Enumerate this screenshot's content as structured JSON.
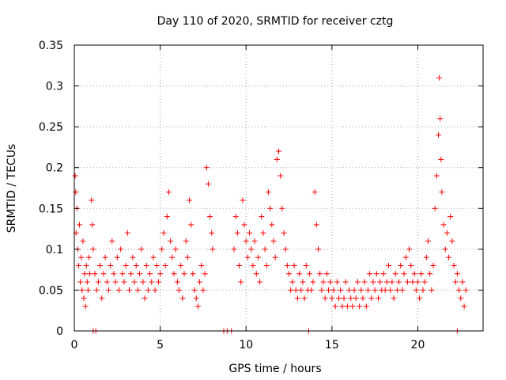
{
  "chart_data": {
    "type": "scatter",
    "title": "Day 110 of 2020, SRMTID for receiver cztg",
    "xlabel": "GPS time / hours",
    "ylabel": "SRMTID / TECUs",
    "xlim": [
      0,
      23.8
    ],
    "ylim": [
      0,
      0.35
    ],
    "xticks": [
      0,
      5,
      10,
      15,
      20
    ],
    "yticks": [
      0,
      0.05,
      0.1,
      0.15,
      0.2,
      0.25,
      0.3,
      0.35
    ],
    "ytick_labels": [
      "0",
      "0.05",
      "0.1",
      "0.15",
      "0.2",
      "0.25",
      "0.3",
      "0.35"
    ],
    "grid": true,
    "marker": "+",
    "color": "#ff0000",
    "series": [
      {
        "name": "SRMTID",
        "points": [
          [
            0.05,
            0.19
          ],
          [
            0.08,
            0.17
          ],
          [
            0.1,
            0.12
          ],
          [
            0.15,
            0.15
          ],
          [
            0.2,
            0.1
          ],
          [
            0.25,
            0.08
          ],
          [
            0.3,
            0.13
          ],
          [
            0.35,
            0.06
          ],
          [
            0.4,
            0.09
          ],
          [
            0.45,
            0.05
          ],
          [
            0.5,
            0.11
          ],
          [
            0.55,
            0.04
          ],
          [
            0.6,
            0.07
          ],
          [
            0.65,
            0.03
          ],
          [
            0.7,
            0.08
          ],
          [
            0.75,
            0.06
          ],
          [
            0.8,
            0.05
          ],
          [
            0.85,
            0.09
          ],
          [
            0.9,
            0.07
          ],
          [
            1.0,
            0.16
          ],
          [
            1.05,
            0.13
          ],
          [
            1.1,
            0.1
          ],
          [
            1.2,
            0.07
          ],
          [
            1.3,
            0.05
          ],
          [
            1.4,
            0.06
          ],
          [
            1.5,
            0.08
          ],
          [
            1.6,
            0.04
          ],
          [
            1.7,
            0.07
          ],
          [
            1.8,
            0.09
          ],
          [
            1.9,
            0.06
          ],
          [
            2.0,
            0.05
          ],
          [
            2.1,
            0.08
          ],
          [
            2.2,
            0.11
          ],
          [
            2.3,
            0.07
          ],
          [
            2.4,
            0.06
          ],
          [
            2.5,
            0.09
          ],
          [
            2.6,
            0.05
          ],
          [
            2.7,
            0.1
          ],
          [
            2.8,
            0.07
          ],
          [
            2.9,
            0.06
          ],
          [
            3.0,
            0.08
          ],
          [
            3.1,
            0.12
          ],
          [
            3.2,
            0.05
          ],
          [
            3.3,
            0.07
          ],
          [
            3.4,
            0.09
          ],
          [
            3.5,
            0.06
          ],
          [
            3.6,
            0.08
          ],
          [
            3.7,
            0.05
          ],
          [
            3.8,
            0.07
          ],
          [
            3.9,
            0.1
          ],
          [
            4.0,
            0.06
          ],
          [
            4.1,
            0.04
          ],
          [
            4.2,
            0.08
          ],
          [
            4.3,
            0.05
          ],
          [
            4.4,
            0.07
          ],
          [
            4.5,
            0.06
          ],
          [
            4.6,
            0.09
          ],
          [
            4.7,
            0.05
          ],
          [
            4.8,
            0.08
          ],
          [
            4.9,
            0.06
          ],
          [
            5.0,
            0.07
          ],
          [
            5.1,
            0.1
          ],
          [
            5.2,
            0.12
          ],
          [
            5.3,
            0.08
          ],
          [
            5.4,
            0.14
          ],
          [
            5.5,
            0.17
          ],
          [
            5.6,
            0.11
          ],
          [
            5.7,
            0.09
          ],
          [
            5.8,
            0.07
          ],
          [
            5.9,
            0.1
          ],
          [
            6.0,
            0.06
          ],
          [
            6.1,
            0.05
          ],
          [
            6.2,
            0.08
          ],
          [
            6.3,
            0.04
          ],
          [
            6.4,
            0.07
          ],
          [
            6.5,
            0.11
          ],
          [
            6.6,
            0.09
          ],
          [
            6.7,
            0.16
          ],
          [
            6.8,
            0.13
          ],
          [
            6.9,
            0.07
          ],
          [
            7.0,
            0.05
          ],
          [
            7.1,
            0.04
          ],
          [
            7.2,
            0.03
          ],
          [
            7.3,
            0.06
          ],
          [
            7.4,
            0.08
          ],
          [
            7.5,
            0.05
          ],
          [
            7.6,
            0.07
          ],
          [
            7.7,
            0.2
          ],
          [
            7.8,
            0.18
          ],
          [
            7.9,
            0.14
          ],
          [
            8.0,
            0.12
          ],
          [
            8.05,
            0.1
          ],
          [
            9.3,
            0.1
          ],
          [
            9.4,
            0.14
          ],
          [
            9.5,
            0.12
          ],
          [
            9.6,
            0.08
          ],
          [
            9.7,
            0.06
          ],
          [
            9.8,
            0.16
          ],
          [
            9.9,
            0.13
          ],
          [
            10.0,
            0.11
          ],
          [
            10.1,
            0.09
          ],
          [
            10.2,
            0.12
          ],
          [
            10.3,
            0.1
          ],
          [
            10.4,
            0.08
          ],
          [
            10.5,
            0.11
          ],
          [
            10.6,
            0.07
          ],
          [
            10.7,
            0.09
          ],
          [
            10.8,
            0.06
          ],
          [
            10.9,
            0.14
          ],
          [
            11.0,
            0.12
          ],
          [
            11.1,
            0.1
          ],
          [
            11.2,
            0.08
          ],
          [
            11.3,
            0.17
          ],
          [
            11.4,
            0.15
          ],
          [
            11.5,
            0.13
          ],
          [
            11.6,
            0.11
          ],
          [
            11.7,
            0.09
          ],
          [
            11.8,
            0.21
          ],
          [
            11.9,
            0.22
          ],
          [
            12.0,
            0.19
          ],
          [
            12.1,
            0.15
          ],
          [
            12.2,
            0.12
          ],
          [
            12.3,
            0.1
          ],
          [
            12.4,
            0.08
          ],
          [
            12.5,
            0.07
          ],
          [
            12.6,
            0.05
          ],
          [
            12.7,
            0.06
          ],
          [
            12.8,
            0.08
          ],
          [
            12.9,
            0.05
          ],
          [
            13.0,
            0.04
          ],
          [
            13.1,
            0.07
          ],
          [
            13.2,
            0.05
          ],
          [
            13.3,
            0.06
          ],
          [
            13.4,
            0.04
          ],
          [
            13.5,
            0.08
          ],
          [
            13.6,
            0.05
          ],
          [
            13.7,
            0.07
          ],
          [
            13.8,
            0.05
          ],
          [
            13.9,
            0.06
          ],
          [
            14.0,
            0.17
          ],
          [
            14.1,
            0.13
          ],
          [
            14.2,
            0.1
          ],
          [
            14.3,
            0.07
          ],
          [
            14.4,
            0.05
          ],
          [
            14.5,
            0.06
          ],
          [
            14.6,
            0.04
          ],
          [
            14.7,
            0.07
          ],
          [
            14.8,
            0.05
          ],
          [
            14.9,
            0.06
          ],
          [
            15.0,
            0.04
          ],
          [
            15.1,
            0.05
          ],
          [
            15.2,
            0.03
          ],
          [
            15.3,
            0.06
          ],
          [
            15.4,
            0.04
          ],
          [
            15.5,
            0.05
          ],
          [
            15.6,
            0.03
          ],
          [
            15.7,
            0.04
          ],
          [
            15.8,
            0.06
          ],
          [
            15.9,
            0.03
          ],
          [
            16.0,
            0.05
          ],
          [
            16.1,
            0.04
          ],
          [
            16.2,
            0.03
          ],
          [
            16.3,
            0.05
          ],
          [
            16.4,
            0.04
          ],
          [
            16.5,
            0.06
          ],
          [
            16.6,
            0.03
          ],
          [
            16.7,
            0.05
          ],
          [
            16.8,
            0.04
          ],
          [
            16.9,
            0.06
          ],
          [
            17.0,
            0.03
          ],
          [
            17.1,
            0.05
          ],
          [
            17.2,
            0.07
          ],
          [
            17.3,
            0.04
          ],
          [
            17.4,
            0.06
          ],
          [
            17.5,
            0.05
          ],
          [
            17.6,
            0.07
          ],
          [
            17.7,
            0.04
          ],
          [
            17.8,
            0.06
          ],
          [
            17.9,
            0.05
          ],
          [
            18.0,
            0.07
          ],
          [
            18.1,
            0.05
          ],
          [
            18.2,
            0.06
          ],
          [
            18.3,
            0.08
          ],
          [
            18.4,
            0.05
          ],
          [
            18.5,
            0.06
          ],
          [
            18.6,
            0.04
          ],
          [
            18.7,
            0.07
          ],
          [
            18.8,
            0.05
          ],
          [
            18.9,
            0.06
          ],
          [
            19.0,
            0.08
          ],
          [
            19.1,
            0.05
          ],
          [
            19.2,
            0.07
          ],
          [
            19.3,
            0.09
          ],
          [
            19.4,
            0.06
          ],
          [
            19.5,
            0.1
          ],
          [
            19.6,
            0.08
          ],
          [
            19.7,
            0.06
          ],
          [
            19.8,
            0.07
          ],
          [
            19.9,
            0.05
          ],
          [
            20.0,
            0.06
          ],
          [
            20.1,
            0.04
          ],
          [
            20.2,
            0.07
          ],
          [
            20.3,
            0.05
          ],
          [
            20.4,
            0.06
          ],
          [
            20.5,
            0.09
          ],
          [
            20.6,
            0.11
          ],
          [
            20.7,
            0.07
          ],
          [
            20.8,
            0.05
          ],
          [
            20.9,
            0.08
          ],
          [
            21.0,
            0.15
          ],
          [
            21.1,
            0.19
          ],
          [
            21.2,
            0.24
          ],
          [
            21.25,
            0.31
          ],
          [
            21.3,
            0.26
          ],
          [
            21.35,
            0.21
          ],
          [
            21.4,
            0.17
          ],
          [
            21.5,
            0.13
          ],
          [
            21.6,
            0.1
          ],
          [
            21.7,
            0.12
          ],
          [
            21.8,
            0.09
          ],
          [
            21.9,
            0.14
          ],
          [
            22.0,
            0.11
          ],
          [
            22.1,
            0.08
          ],
          [
            22.2,
            0.06
          ],
          [
            22.3,
            0.07
          ],
          [
            22.4,
            0.05
          ],
          [
            22.5,
            0.04
          ],
          [
            22.6,
            0.06
          ],
          [
            22.7,
            0.03
          ],
          [
            22.8,
            0.05
          ],
          [
            1.1,
            0.0
          ],
          [
            1.25,
            0.0
          ],
          [
            8.7,
            0.0
          ],
          [
            8.9,
            0.0
          ],
          [
            9.15,
            0.0
          ],
          [
            13.65,
            0.0
          ],
          [
            22.3,
            0.0
          ]
        ]
      }
    ]
  }
}
